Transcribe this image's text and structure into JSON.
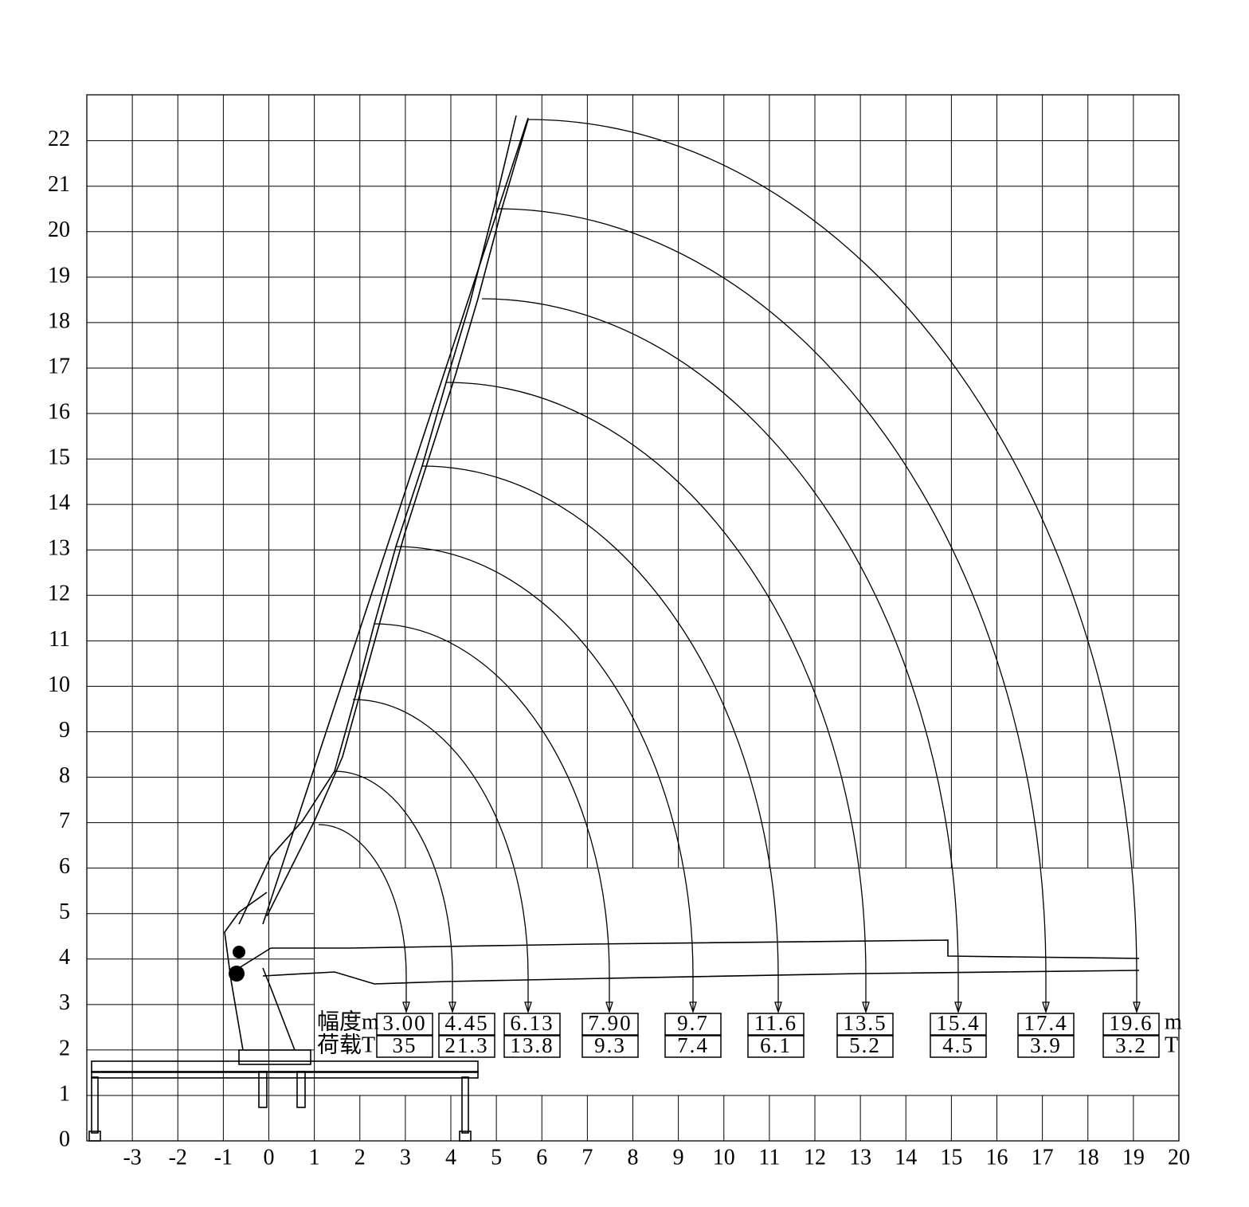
{
  "axes": {
    "x_ticks": [
      -3,
      -2,
      -1,
      0,
      1,
      2,
      3,
      4,
      5,
      6,
      7,
      8,
      9,
      10,
      11,
      12,
      13,
      14,
      15,
      16,
      17,
      18,
      19,
      20
    ],
    "y_ticks": [
      0,
      1,
      2,
      3,
      4,
      5,
      6,
      7,
      8,
      9,
      10,
      11,
      12,
      13,
      14,
      15,
      16,
      17,
      18,
      19,
      20,
      21,
      22
    ]
  },
  "table": {
    "radius_label": "幅度m",
    "load_label": "荷载T",
    "radius_unit": "m",
    "load_unit": "T",
    "radius": [
      "3.00",
      "4.45",
      "6.13",
      "7.90",
      "9.7",
      "11.6",
      "13.5",
      "15.4",
      "17.4",
      "19.6"
    ],
    "load": [
      "35",
      "21.3",
      "13.8",
      "9.3",
      "7.4",
      "6.1",
      "5.2",
      "4.5",
      "3.9",
      "3.2"
    ]
  }
}
